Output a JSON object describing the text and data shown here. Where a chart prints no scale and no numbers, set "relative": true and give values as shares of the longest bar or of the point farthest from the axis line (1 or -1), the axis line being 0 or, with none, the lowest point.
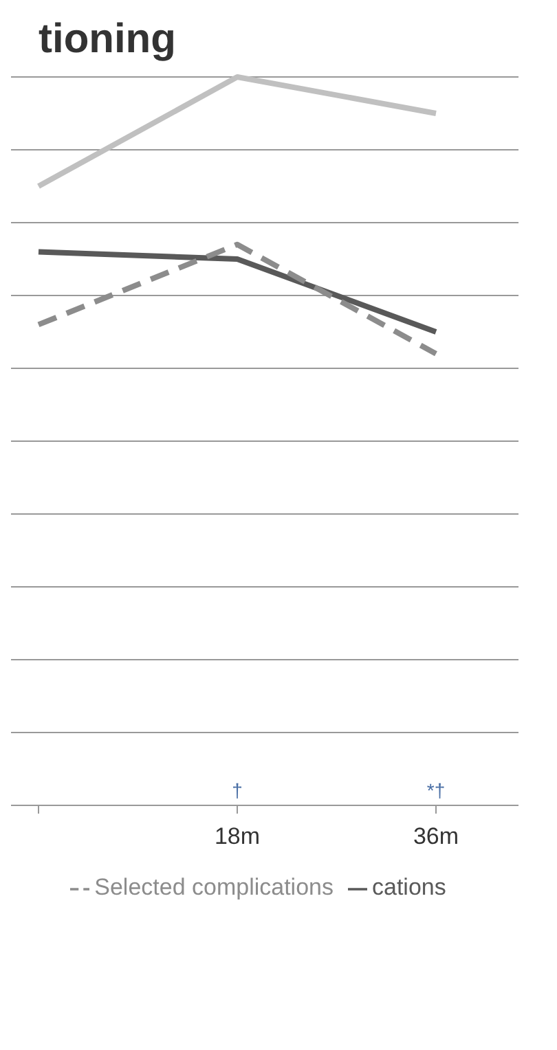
{
  "chart_data": {
    "type": "line",
    "title": "tioning",
    "relative": true,
    "grid": "y",
    "legend": "bottom",
    "marker": "none",
    "categories": [
      null,
      "18m",
      "36m"
    ],
    "series": [
      {
        "color": "#c0c0c0",
        "values": [
          0.85,
          1,
          0.95
        ]
      },
      {
        "name": "cations",
        "color": "#595959",
        "values": [
          0.76,
          0.75,
          0.65
        ]
      },
      {
        "name": "Selected complications",
        "color": "#8c8c8c",
        "line_style": "dashed",
        "values": [
          0.66,
          0.77,
          0.62
        ]
      }
    ],
    "annotations": [
      "†",
      "*†"
    ]
  }
}
